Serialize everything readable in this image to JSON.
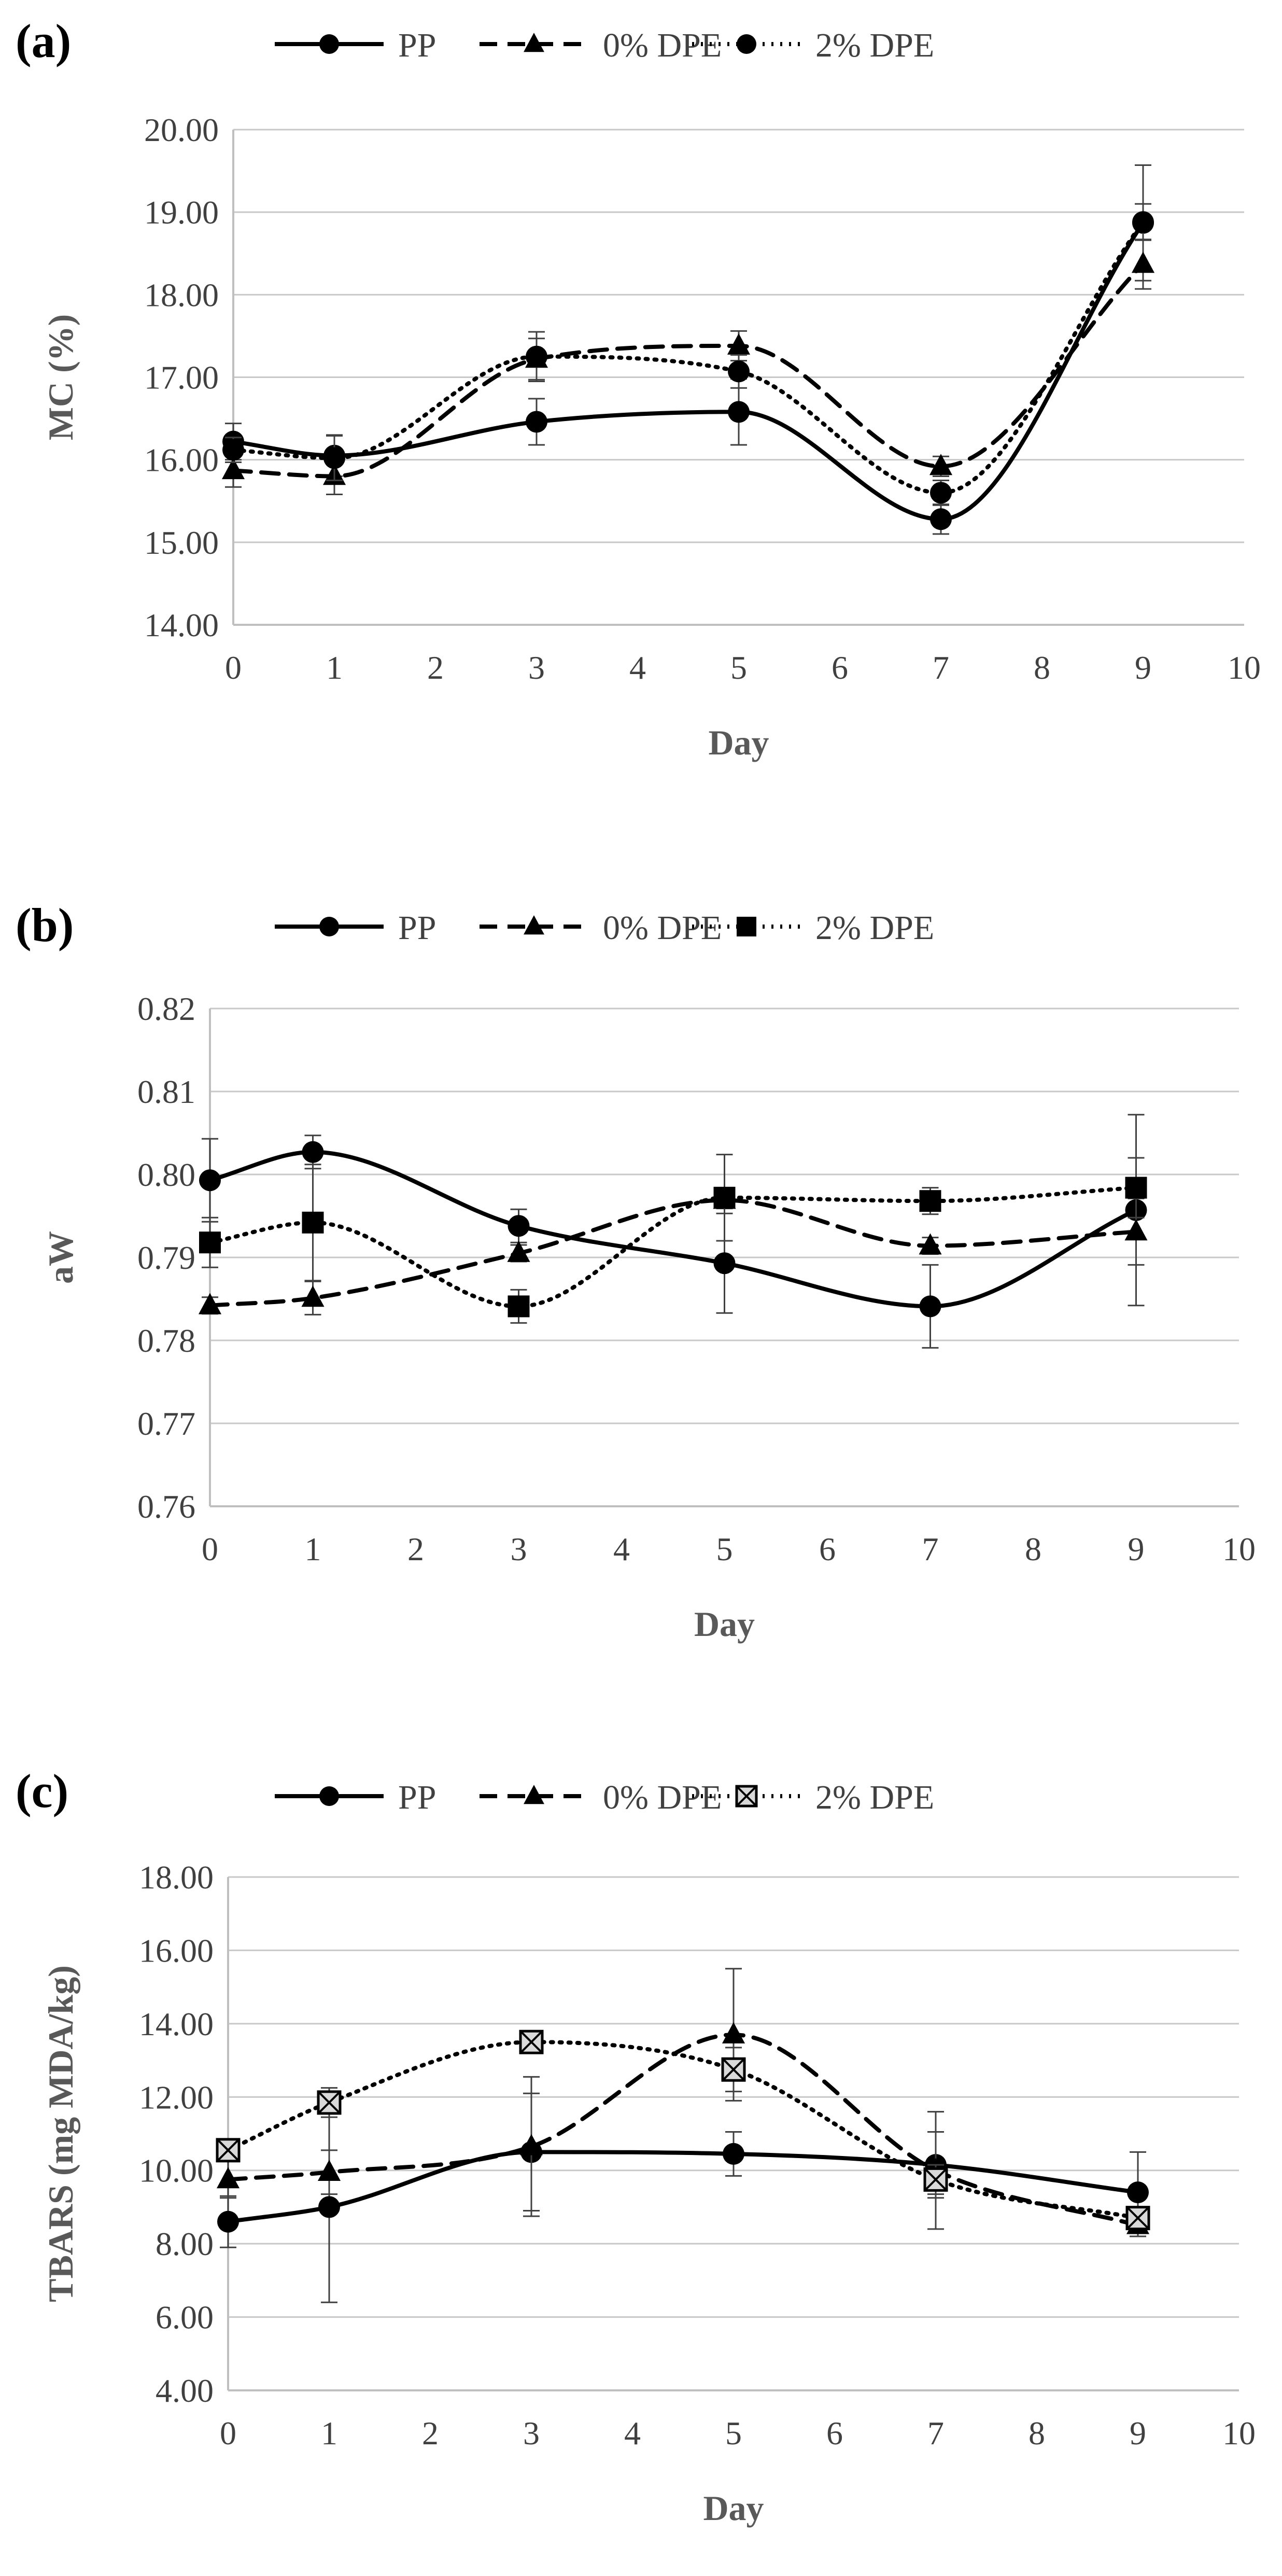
{
  "chart_data": [
    {
      "type": "line",
      "panel_label": "(a)",
      "xlabel": "Day",
      "ylabel": "MC (%)",
      "xlim": [
        0,
        10
      ],
      "ylim": [
        14,
        20
      ],
      "xticks": [
        "0",
        "1",
        "2",
        "3",
        "4",
        "5",
        "6",
        "7",
        "8",
        "9",
        "10"
      ],
      "yticks": [
        "14.00",
        "15.00",
        "16.00",
        "17.00",
        "18.00",
        "19.00",
        "20.00"
      ],
      "x": [
        0,
        1,
        3,
        5,
        7,
        9
      ],
      "legend_position": "top",
      "series": [
        {
          "name": "PP",
          "marker": "circle",
          "dash": "solid",
          "values": [
            16.22,
            16.05,
            16.46,
            16.58,
            15.28,
            18.87
          ],
          "errors": [
            0.22,
            0.25,
            0.28,
            0.4,
            0.18,
            0.7
          ]
        },
        {
          "name": "0% DPE",
          "marker": "triangle",
          "dash": "dashed",
          "values": [
            15.87,
            15.8,
            17.22,
            17.38,
            15.92,
            18.37
          ],
          "errors": [
            0.2,
            0.22,
            0.25,
            0.18,
            0.12,
            0.3
          ]
        },
        {
          "name": "2% DPE",
          "marker": "circle",
          "dash": "dotted",
          "values": [
            16.12,
            16.02,
            17.25,
            17.07,
            15.6,
            18.88
          ],
          "errors": [
            0.15,
            0.27,
            0.3,
            0.2,
            0.15,
            0.22
          ]
        }
      ]
    },
    {
      "type": "line",
      "panel_label": "(b)",
      "xlabel": "Day",
      "ylabel": "aW",
      "xlim": [
        0,
        10
      ],
      "ylim": [
        0.76,
        0.82
      ],
      "xticks": [
        "0",
        "1",
        "2",
        "3",
        "4",
        "5",
        "6",
        "7",
        "8",
        "9",
        "10"
      ],
      "yticks": [
        "0.76",
        "0.77",
        "0.78",
        "0.79",
        "0.80",
        "0.81",
        "0.82"
      ],
      "x": [
        0,
        1,
        3,
        5,
        7,
        9
      ],
      "legend_position": "top",
      "series": [
        {
          "name": "PP",
          "marker": "circle",
          "dash": "solid",
          "values": [
            0.7993,
            0.8027,
            0.7938,
            0.7893,
            0.7841,
            0.7957
          ],
          "errors": [
            0.005,
            0.002,
            0.002,
            0.006,
            0.005,
            0.0115
          ]
        },
        {
          "name": "0% DPE",
          "marker": "triangle",
          "dash": "dashed",
          "values": [
            0.7842,
            0.7851,
            0.7905,
            0.7969,
            0.7914,
            0.7931
          ],
          "errors": [
            0.001,
            0.002,
            0.001,
            0.001,
            0.001,
            0.004
          ]
        },
        {
          "name": "2% DPE",
          "marker": "square",
          "dash": "dotted",
          "values": [
            0.7918,
            0.7942,
            0.7841,
            0.7972,
            0.7968,
            0.7984
          ],
          "errors": [
            0.003,
            0.007,
            0.002,
            0.0052,
            0.0016,
            0.0036
          ]
        }
      ]
    },
    {
      "type": "line",
      "panel_label": "(c)",
      "xlabel": "Day",
      "ylabel": "TBARS (mg MDA/kg)",
      "xlim": [
        0,
        10
      ],
      "ylim": [
        4,
        18
      ],
      "xticks": [
        "0",
        "1",
        "2",
        "3",
        "4",
        "5",
        "6",
        "7",
        "8",
        "9",
        "10"
      ],
      "yticks": [
        "4.00",
        "6.00",
        "8.00",
        "10.00",
        "12.00",
        "14.00",
        "16.00",
        "18.00"
      ],
      "x": [
        0,
        1,
        3,
        5,
        7,
        9
      ],
      "legend_position": "top",
      "series": [
        {
          "name": "PP",
          "marker": "circle",
          "dash": "solid",
          "values": [
            8.6,
            9.0,
            10.5,
            10.45,
            10.15,
            9.4
          ],
          "errors": [
            0.7,
            2.6,
            1.6,
            0.6,
            0.9,
            1.1
          ]
        },
        {
          "name": "0% DPE",
          "marker": "triangle",
          "dash": "dashed",
          "values": [
            9.75,
            9.95,
            10.65,
            13.7,
            10.0,
            8.5
          ],
          "errors": [
            0.5,
            0.6,
            1.9,
            1.8,
            1.6,
            0.3
          ]
        },
        {
          "name": "2% DPE",
          "marker": "boxcross",
          "dash": "dotted",
          "values": [
            10.55,
            11.85,
            13.5,
            12.75,
            9.75,
            8.7
          ],
          "errors": [
            0.3,
            0.4,
            0.3,
            0.6,
            0.4,
            0.3
          ]
        }
      ]
    }
  ]
}
